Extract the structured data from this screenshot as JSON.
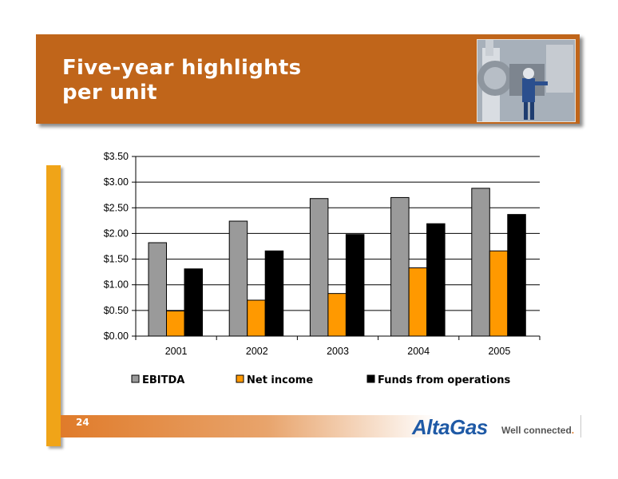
{
  "slide": {
    "title": "Five-year highlights per unit",
    "page_number": "24",
    "logo_text": "AltaGas",
    "tagline": "Well connected",
    "tagline_dot": ".",
    "photo_icon": "industrial-worker-photo"
  },
  "colors": {
    "banner": "#c0651a",
    "side_bar": "#f0a418",
    "logo": "#1f5aa6"
  },
  "chart_data": {
    "type": "bar",
    "categories": [
      "2001",
      "2002",
      "2003",
      "2004",
      "2005"
    ],
    "series": [
      {
        "name": "EBITDA",
        "color": "#9a9a9a",
        "values": [
          1.82,
          2.24,
          2.68,
          2.7,
          2.88
        ]
      },
      {
        "name": "Net income",
        "color": "#ff9900",
        "values": [
          0.49,
          0.7,
          0.83,
          1.33,
          1.66
        ]
      },
      {
        "name": "Funds from operations",
        "color": "#000000",
        "values": [
          1.31,
          1.66,
          1.98,
          2.19,
          2.37
        ]
      }
    ],
    "ylim": [
      0,
      3.5
    ],
    "yticks": [
      "$0.00",
      "$0.50",
      "$1.00",
      "$1.50",
      "$2.00",
      "$2.50",
      "$3.00",
      "$3.50"
    ],
    "ytick_values": [
      0,
      0.5,
      1.0,
      1.5,
      2.0,
      2.5,
      3.0,
      3.5
    ],
    "grid": true,
    "legend_position": "bottom"
  }
}
